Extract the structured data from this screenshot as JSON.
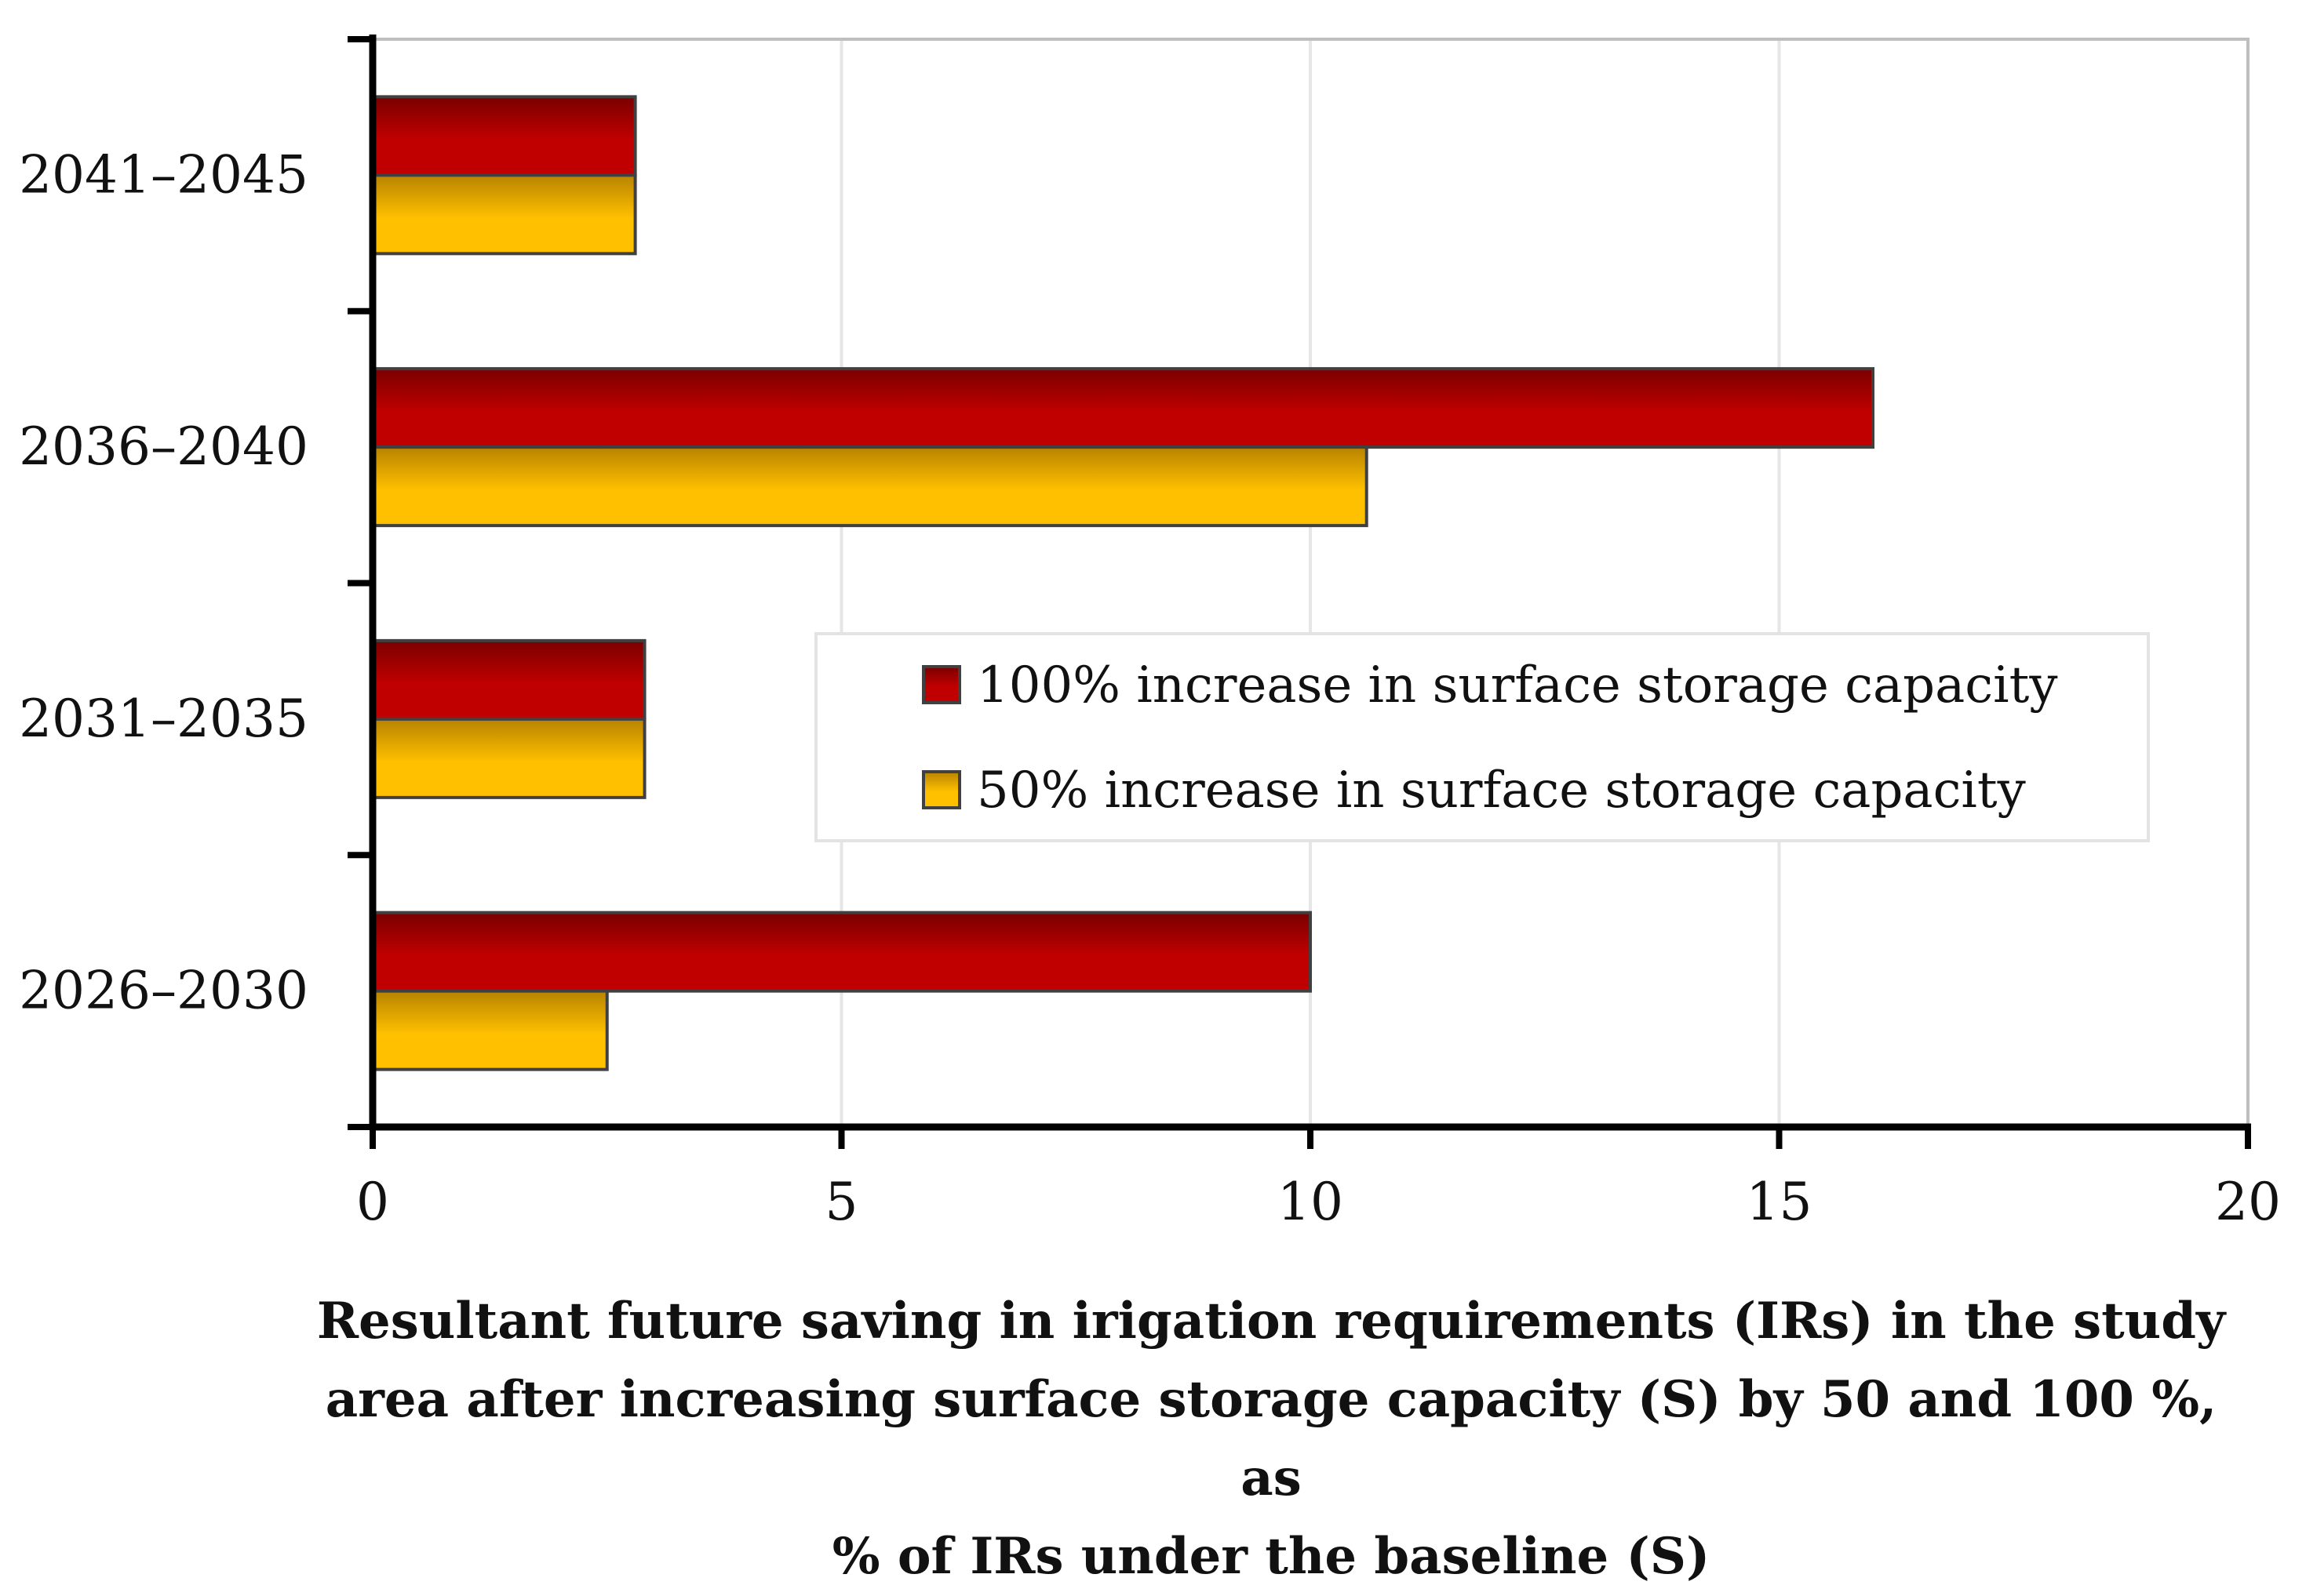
{
  "chart_data": {
    "type": "bar",
    "orientation": "horizontal",
    "categories": [
      "2026–2030",
      "2031–2035",
      "2036–2040",
      "2041–2045"
    ],
    "series": [
      {
        "name": "100% increase in surface storage capacity",
        "values": [
          10.0,
          2.9,
          16.0,
          2.8
        ],
        "color": "#c00000"
      },
      {
        "name": "50% increase in surface storage capacity",
        "values": [
          2.5,
          2.9,
          10.6,
          2.8
        ],
        "color": "#ffc000"
      }
    ],
    "xlim": [
      0,
      20
    ],
    "xticks": [
      "0",
      "5",
      "10",
      "15",
      "20"
    ],
    "xlabel_lines": [
      "Resultant future saving in irigation requirements (IRs) in the study",
      "area after increasing surface storage capacity (S) by 50 and 100 %, as",
      "% of IRs under the baseline (S)"
    ],
    "ylabel": "",
    "grid": "vertical",
    "legend_position": "center-right"
  }
}
